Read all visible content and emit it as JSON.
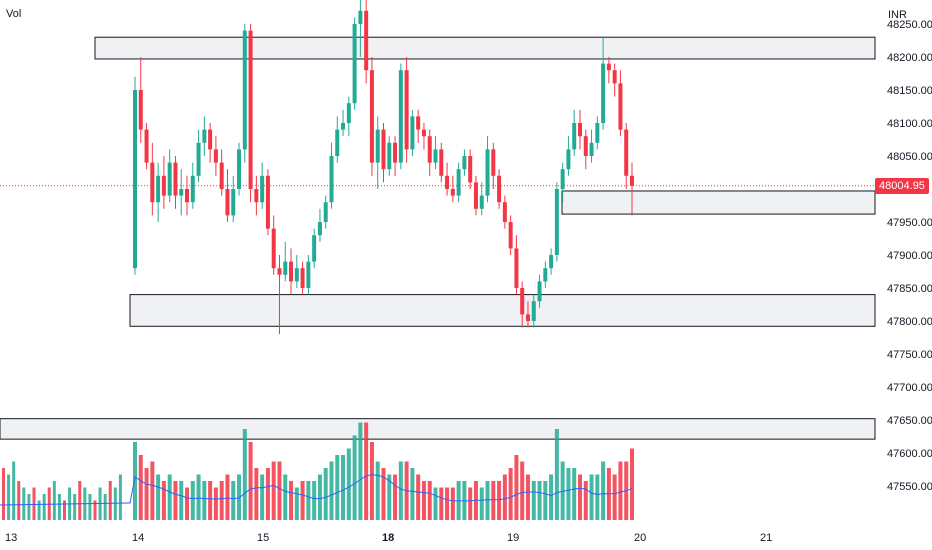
{
  "header": {
    "vol_label": "Vol",
    "currency_label": "INR"
  },
  "current_price": {
    "label": "48004.95",
    "value": 48004.95,
    "color": "#f23645"
  },
  "colors": {
    "up": "#22ab94",
    "down": "#f23645",
    "ma_line": "#2962ff",
    "zone_fill": "#f0f1f3"
  },
  "chart_data": {
    "type": "candlestick",
    "y_ticks": [
      "48250.00",
      "48200.00",
      "48150.00",
      "48100.00",
      "48050.00",
      "47950.00",
      "47900.00",
      "47850.00",
      "47800.00",
      "47750.00",
      "47700.00",
      "47650.00",
      "47600.00",
      "47550.00"
    ],
    "x_ticks": [
      "13",
      "14",
      "15",
      "18",
      "19",
      "20",
      "21"
    ],
    "ylim": [
      47530,
      48285
    ],
    "zones": [
      {
        "from_day": "13",
        "to_day": "21",
        "low": 48197,
        "high": 48230
      },
      {
        "from_day": "19",
        "to_day": "21",
        "low": 47962,
        "high": 47997
      },
      {
        "from_day": "14",
        "to_day": "21",
        "low": 47792,
        "high": 47840
      },
      {
        "from_day": "13",
        "to_day": "21",
        "low": 47621,
        "high": 47652
      }
    ],
    "candles": [
      [
        47880,
        48150,
        47870,
        48170,
        12
      ],
      [
        48150,
        48090,
        48070,
        48200,
        10
      ],
      [
        48090,
        48040,
        48030,
        48100,
        8
      ],
      [
        48040,
        47980,
        47960,
        48070,
        9
      ],
      [
        47980,
        48020,
        47950,
        48040,
        7
      ],
      [
        48020,
        47990,
        47970,
        48050,
        6
      ],
      [
        47990,
        48040,
        47980,
        48060,
        7
      ],
      [
        48040,
        47990,
        47970,
        48050,
        6
      ],
      [
        47990,
        48000,
        47960,
        48030,
        6
      ],
      [
        48000,
        47980,
        47960,
        48020,
        5
      ],
      [
        47980,
        48020,
        47970,
        48040,
        6
      ],
      [
        48020,
        48070,
        48010,
        48090,
        7
      ],
      [
        48070,
        48090,
        48050,
        48110,
        6
      ],
      [
        48090,
        48060,
        48040,
        48100,
        6
      ],
      [
        48060,
        48040,
        48020,
        48080,
        5
      ],
      [
        48040,
        48000,
        47990,
        48060,
        6
      ],
      [
        48000,
        47960,
        47950,
        48030,
        7
      ],
      [
        47960,
        48000,
        47950,
        48020,
        6
      ],
      [
        48000,
        48060,
        47990,
        48070,
        7
      ],
      [
        48060,
        48240,
        48040,
        48250,
        14
      ],
      [
        48240,
        48000,
        47980,
        48250,
        12
      ],
      [
        48000,
        47980,
        47960,
        48020,
        8
      ],
      [
        47980,
        48020,
        47970,
        48040,
        7
      ],
      [
        48020,
        47940,
        47930,
        48030,
        8
      ],
      [
        47940,
        47880,
        47870,
        47960,
        9
      ],
      [
        47880,
        47870,
        47780,
        47900,
        9
      ],
      [
        47870,
        47890,
        47860,
        47920,
        7
      ],
      [
        47890,
        47860,
        47840,
        47910,
        6
      ],
      [
        47860,
        47880,
        47850,
        47900,
        5
      ],
      [
        47880,
        47850,
        47840,
        47890,
        6
      ],
      [
        47850,
        47890,
        47840,
        47900,
        6
      ],
      [
        47890,
        47930,
        47880,
        47940,
        6
      ],
      [
        47930,
        47950,
        47920,
        47970,
        7
      ],
      [
        47950,
        47980,
        47940,
        47990,
        8
      ],
      [
        47980,
        48050,
        47970,
        48070,
        9
      ],
      [
        48050,
        48090,
        48040,
        48110,
        10
      ],
      [
        48090,
        48100,
        48080,
        48120,
        10
      ],
      [
        48100,
        48130,
        48080,
        48140,
        11
      ],
      [
        48130,
        48250,
        48120,
        48260,
        13
      ],
      [
        48250,
        48270,
        48200,
        48290,
        15
      ],
      [
        48270,
        48180,
        48160,
        48290,
        15
      ],
      [
        48180,
        48040,
        48020,
        48200,
        12
      ],
      [
        48040,
        48090,
        48000,
        48110,
        9
      ],
      [
        48090,
        48030,
        48010,
        48100,
        8
      ],
      [
        48030,
        48070,
        48020,
        48080,
        7
      ],
      [
        48070,
        48040,
        48020,
        48080,
        7
      ],
      [
        48040,
        48180,
        48030,
        48190,
        9
      ],
      [
        48180,
        48060,
        48040,
        48200,
        9
      ],
      [
        48060,
        48110,
        48050,
        48120,
        8
      ],
      [
        48110,
        48090,
        48070,
        48120,
        7
      ],
      [
        48090,
        48080,
        48060,
        48100,
        6
      ],
      [
        48080,
        48040,
        48020,
        48090,
        6
      ],
      [
        48040,
        48060,
        48030,
        48080,
        5
      ],
      [
        48060,
        48020,
        48010,
        48070,
        5
      ],
      [
        48020,
        48000,
        47990,
        48040,
        5
      ],
      [
        48000,
        47990,
        47980,
        48020,
        5
      ],
      [
        47990,
        48030,
        47980,
        48040,
        6
      ],
      [
        48030,
        48050,
        48020,
        48060,
        6
      ],
      [
        48050,
        48010,
        48000,
        48060,
        5
      ],
      [
        48010,
        47970,
        47960,
        48020,
        6
      ],
      [
        47970,
        47990,
        47960,
        48010,
        5
      ],
      [
        47990,
        48060,
        47980,
        48080,
        6
      ],
      [
        48060,
        48020,
        48000,
        48070,
        6
      ],
      [
        48020,
        47980,
        47970,
        48030,
        6
      ],
      [
        47980,
        47950,
        47940,
        47990,
        7
      ],
      [
        47950,
        47910,
        47900,
        47960,
        8
      ],
      [
        47910,
        47850,
        47840,
        47930,
        10
      ],
      [
        47850,
        47810,
        47790,
        47860,
        9
      ],
      [
        47810,
        47800,
        47790,
        47830,
        7
      ],
      [
        47800,
        47830,
        47790,
        47840,
        6
      ],
      [
        47830,
        47860,
        47820,
        47870,
        6
      ],
      [
        47860,
        47880,
        47850,
        47890,
        6
      ],
      [
        47880,
        47900,
        47870,
        47910,
        7
      ],
      [
        47900,
        48000,
        47890,
        48010,
        14
      ],
      [
        48000,
        48030,
        47980,
        48040,
        9
      ],
      [
        48030,
        48060,
        48020,
        48080,
        8
      ],
      [
        48060,
        48100,
        48050,
        48120,
        8
      ],
      [
        48100,
        48080,
        48060,
        48120,
        7
      ],
      [
        48080,
        48050,
        48030,
        48090,
        6
      ],
      [
        48050,
        48070,
        48040,
        48090,
        7
      ],
      [
        48070,
        48100,
        48060,
        48110,
        7
      ],
      [
        48100,
        48190,
        48090,
        48230,
        9
      ],
      [
        48190,
        48180,
        48160,
        48200,
        8
      ],
      [
        48180,
        48160,
        48140,
        48190,
        7
      ],
      [
        48160,
        48090,
        48080,
        48180,
        9
      ],
      [
        48090,
        48020,
        48000,
        48100,
        9
      ],
      [
        48020,
        48005,
        47960,
        48040,
        11
      ]
    ]
  }
}
